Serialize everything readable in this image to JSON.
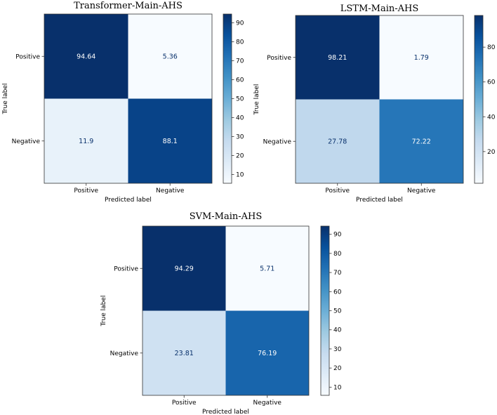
{
  "chart_data": [
    {
      "type": "heatmap",
      "title": "Transformer-Main-AHS",
      "xlabel": "Predicted label",
      "ylabel": "True label",
      "x_categories": [
        "Positive",
        "Negative"
      ],
      "y_categories": [
        "Positive",
        "Negative"
      ],
      "values": [
        [
          94.64,
          5.36
        ],
        [
          11.9,
          88.1
        ]
      ],
      "value_labels": [
        [
          "94.64",
          "5.36"
        ],
        [
          "11.9",
          "88.1"
        ]
      ],
      "colorbar": {
        "vmin": 5.36,
        "vmax": 94.64,
        "ticks": [
          10,
          20,
          30,
          40,
          50,
          60,
          70,
          80,
          90
        ]
      },
      "colormap": "Blues"
    },
    {
      "type": "heatmap",
      "title": "LSTM-Main-AHS",
      "xlabel": "Predicted label",
      "ylabel": "True label",
      "x_categories": [
        "Positive",
        "Negative"
      ],
      "y_categories": [
        "Positive",
        "Negative"
      ],
      "values": [
        [
          98.21,
          1.79
        ],
        [
          27.78,
          72.22
        ]
      ],
      "value_labels": [
        [
          "98.21",
          "1.79"
        ],
        [
          "27.78",
          "72.22"
        ]
      ],
      "colorbar": {
        "vmin": 1.79,
        "vmax": 98.21,
        "ticks": [
          20,
          40,
          60,
          80
        ]
      },
      "colormap": "Blues"
    },
    {
      "type": "heatmap",
      "title": "SVM-Main-AHS",
      "xlabel": "Predicted label",
      "ylabel": "True label",
      "x_categories": [
        "Positive",
        "Negative"
      ],
      "y_categories": [
        "Positive",
        "Negative"
      ],
      "values": [
        [
          94.29,
          5.71
        ],
        [
          23.81,
          76.19
        ]
      ],
      "value_labels": [
        [
          "94.29",
          "5.71"
        ],
        [
          "23.81",
          "76.19"
        ]
      ],
      "colorbar": {
        "vmin": 5.71,
        "vmax": 94.29,
        "ticks": [
          10,
          20,
          30,
          40,
          50,
          60,
          70,
          80,
          90
        ]
      },
      "colormap": "Blues"
    }
  ]
}
